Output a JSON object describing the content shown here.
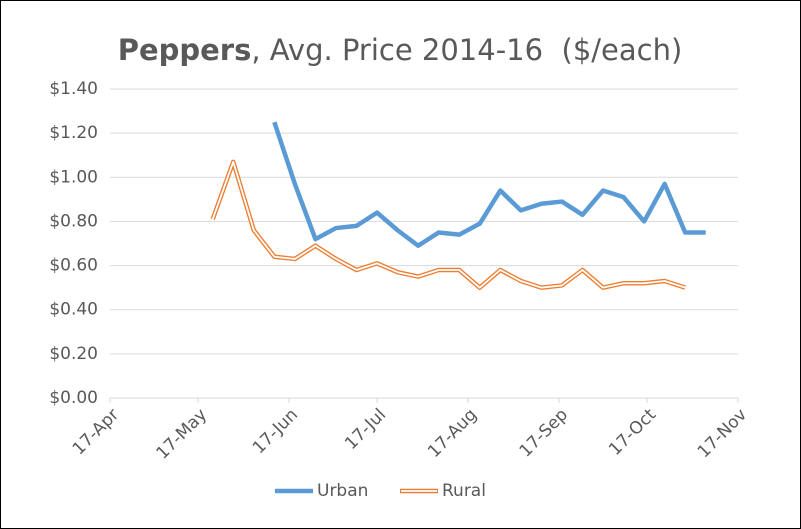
{
  "chart_data": {
    "type": "line",
    "title": [
      "Peppers",
      ", Avg. Price 2014-16  ($/each)"
    ],
    "x": [
      "22-May",
      "29-May",
      "5-Jun",
      "12-Jun",
      "19-Jun",
      "26-Jun",
      "3-Jul",
      "10-Jul",
      "17-Jul",
      "24-Jul",
      "31-Jul",
      "7-Aug",
      "14-Aug",
      "21-Aug",
      "28-Aug",
      "4-Sep",
      "11-Sep",
      "18-Sep",
      "25-Sep",
      "2-Oct",
      "9-Oct",
      "16-Oct",
      "23-Oct",
      "30-Oct",
      "6-Nov"
    ],
    "series": [
      {
        "name": "Urban",
        "color": "#5b9bd5",
        "style": "solid",
        "values": [
          null,
          null,
          null,
          1.25,
          0.97,
          0.72,
          0.77,
          0.78,
          0.84,
          0.76,
          0.69,
          0.75,
          0.74,
          0.79,
          0.94,
          0.85,
          0.88,
          0.89,
          0.83,
          0.94,
          0.91,
          0.8,
          0.97,
          0.75,
          0.75
        ]
      },
      {
        "name": "Rural",
        "color": "#ed7d31",
        "style": "double",
        "values": [
          0.81,
          1.07,
          0.76,
          0.64,
          0.63,
          0.69,
          0.63,
          0.58,
          0.61,
          0.57,
          0.55,
          0.58,
          0.58,
          0.5,
          0.58,
          0.53,
          0.5,
          0.51,
          0.58,
          0.5,
          0.52,
          0.52,
          0.53,
          0.5,
          null
        ]
      }
    ],
    "xlim": [
      "17-Apr",
      "17-Nov"
    ],
    "xticks": [
      "17-Apr",
      "17-May",
      "17-Jun",
      "17-Jul",
      "17-Aug",
      "17-Sep",
      "17-Oct",
      "17-Nov"
    ],
    "ylim": [
      0,
      1.4
    ],
    "yticks": [
      {
        "value": 0,
        "label": "$0.00"
      },
      {
        "value": 0.2,
        "label": "$0.20"
      },
      {
        "value": 0.4,
        "label": "$0.40"
      },
      {
        "value": 0.6,
        "label": "$0.60"
      },
      {
        "value": 0.8,
        "label": "$0.80"
      },
      {
        "value": 1,
        "label": "$1.00"
      },
      {
        "value": 1.2,
        "label": "$1.20"
      },
      {
        "value": 1.4,
        "label": "$1.40"
      }
    ],
    "grid": true,
    "legend": "bottom"
  }
}
